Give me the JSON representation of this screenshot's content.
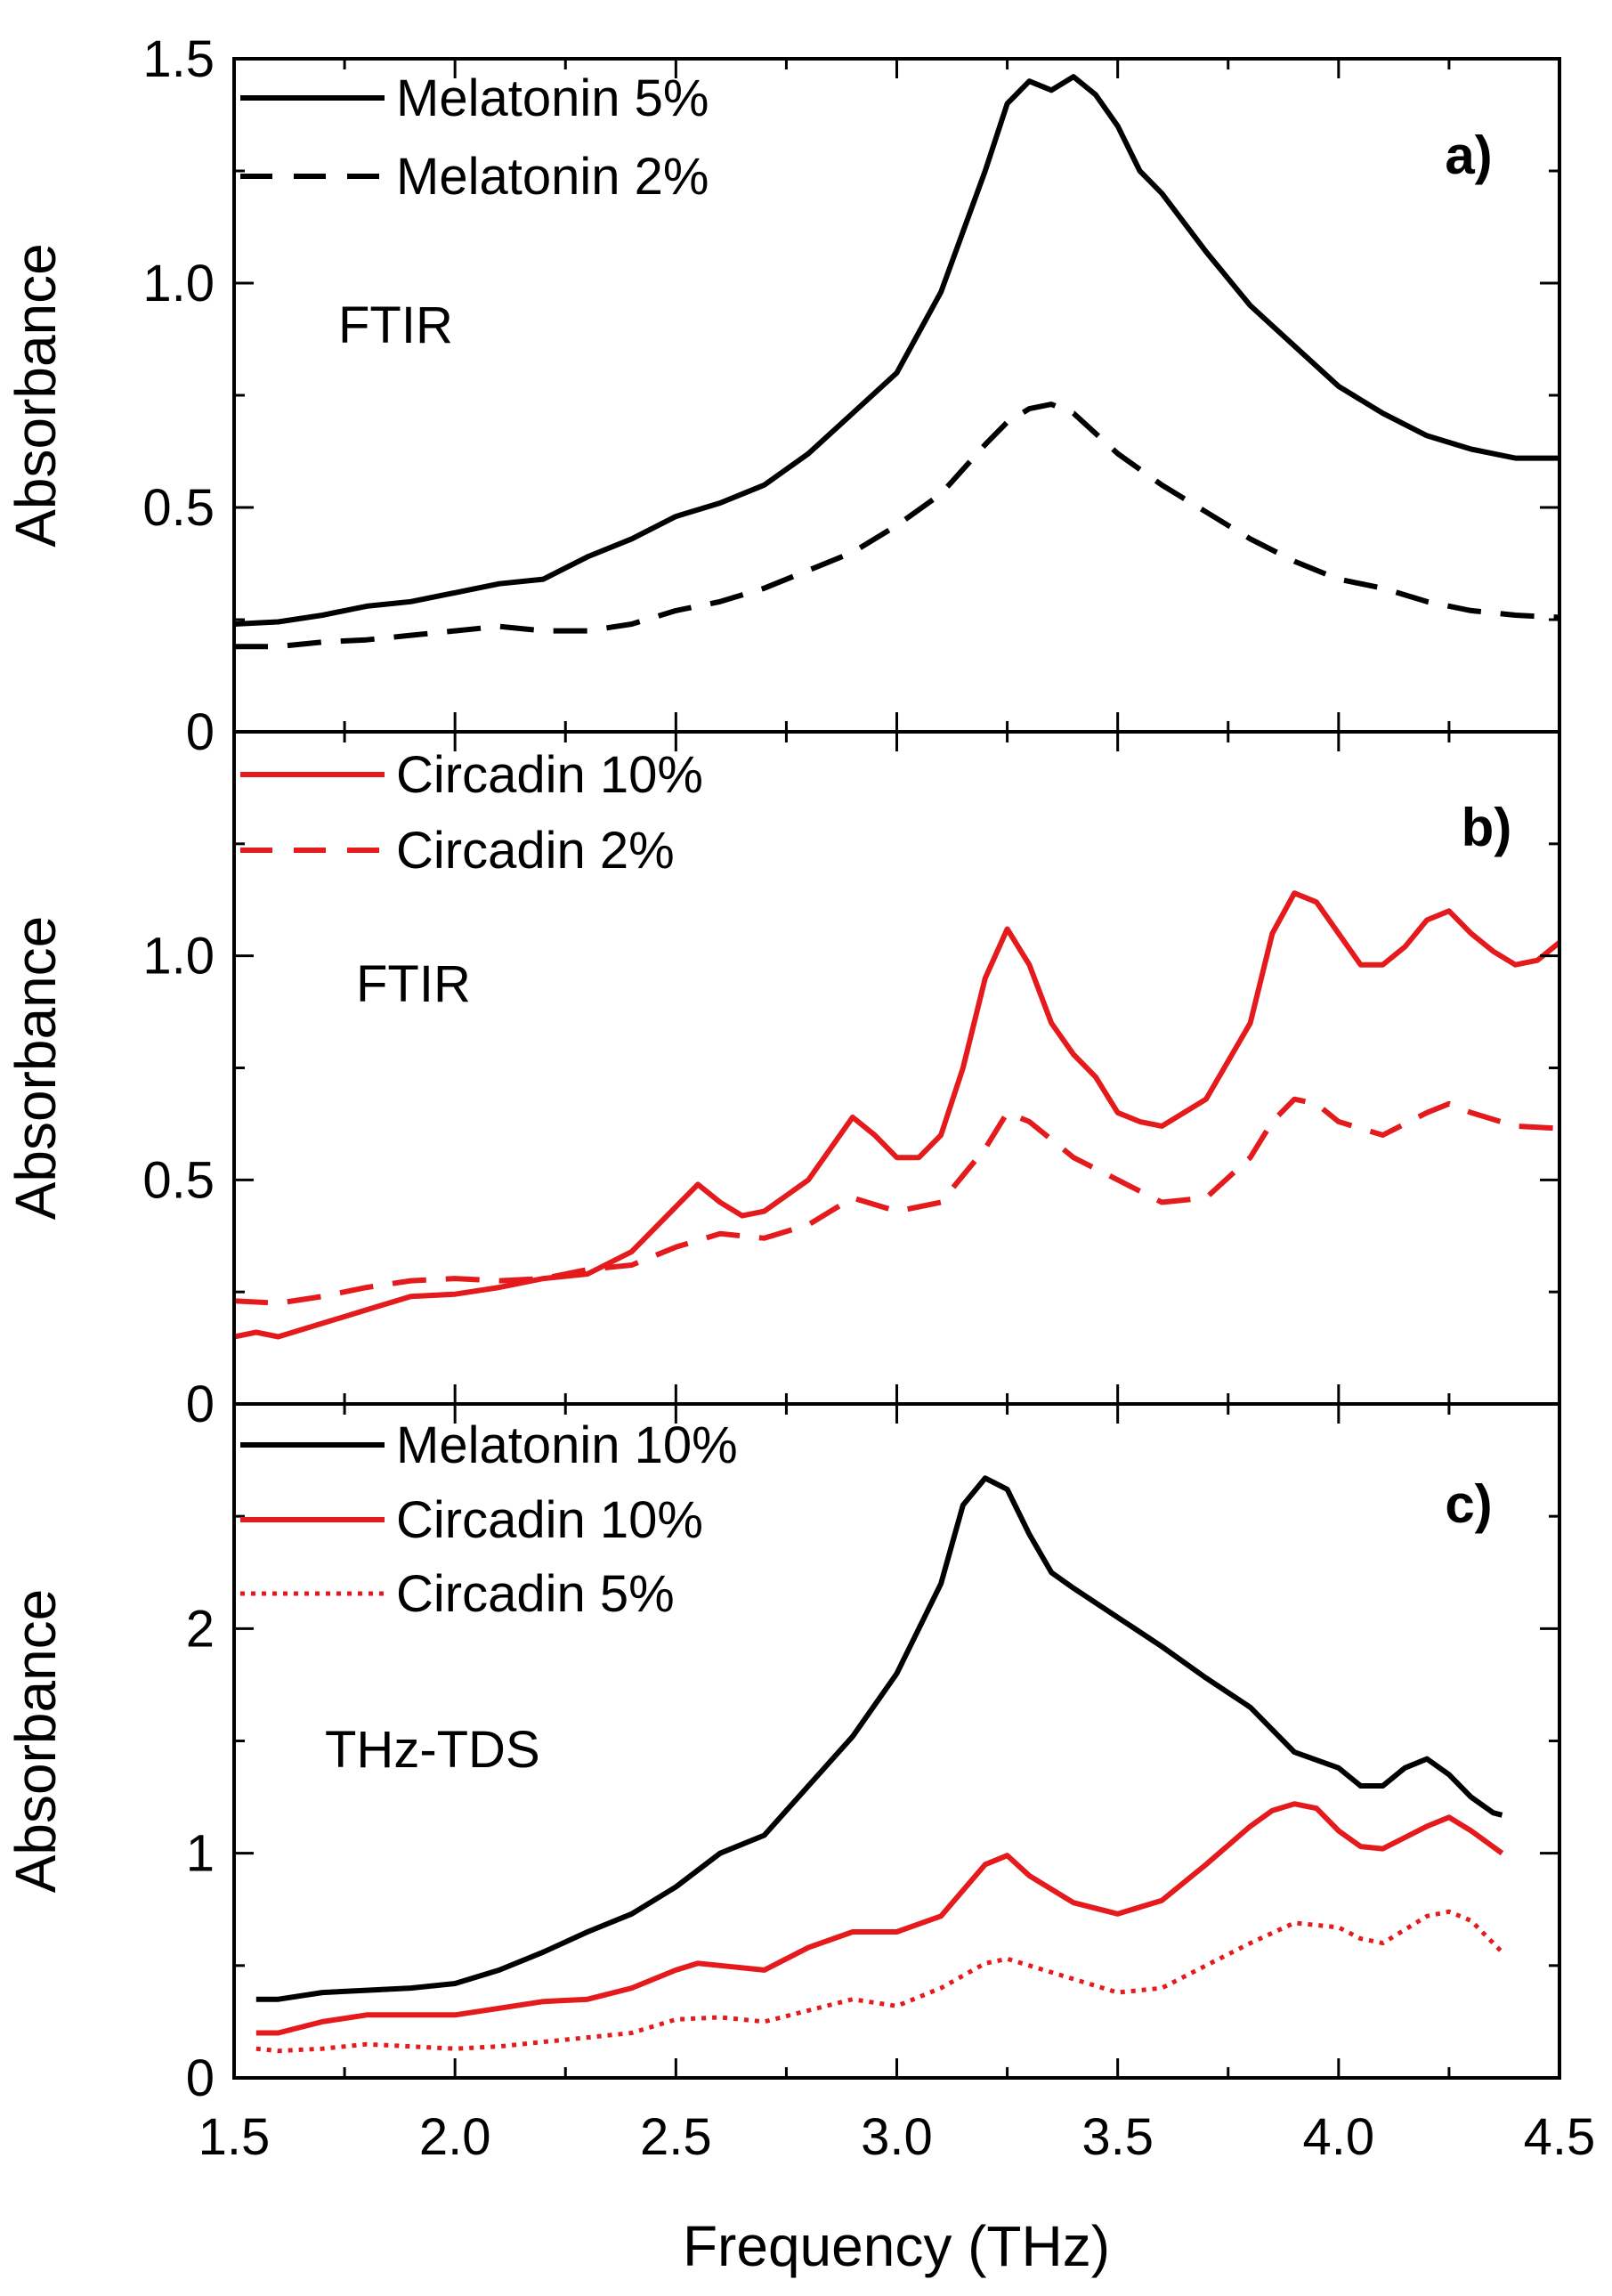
{
  "figure": {
    "xlabel": "Frequency (THz)",
    "xlim": [
      1.5,
      4.5
    ],
    "x_ticks": [
      1.5,
      2.0,
      2.5,
      3.0,
      3.5,
      4.0,
      4.5
    ],
    "x_tick_labels": [
      "1.5",
      "2.0",
      "2.5",
      "3.0",
      "3.5",
      "4.0",
      "4.5"
    ]
  },
  "chart_data": [
    {
      "type": "line",
      "panel_label": "a)",
      "method": "FTIR",
      "ylabel": "Absorbance",
      "ylim": [
        0,
        1.5
      ],
      "y_ticks": [
        0,
        0.5,
        1.0,
        1.5
      ],
      "y_tick_labels": [
        "0",
        "0.5",
        "1.0",
        "1.5"
      ],
      "series": [
        {
          "name": "Melatonin 5%",
          "color": "#000000",
          "style": "solid",
          "x": [
            1.5,
            1.6,
            1.7,
            1.8,
            1.9,
            2.0,
            2.1,
            2.2,
            2.3,
            2.4,
            2.5,
            2.6,
            2.7,
            2.8,
            2.9,
            3.0,
            3.1,
            3.2,
            3.25,
            3.3,
            3.35,
            3.4,
            3.45,
            3.5,
            3.55,
            3.6,
            3.7,
            3.8,
            3.9,
            4.0,
            4.1,
            4.2,
            4.3,
            4.4,
            4.5
          ],
          "values": [
            0.24,
            0.245,
            0.26,
            0.28,
            0.29,
            0.31,
            0.33,
            0.34,
            0.39,
            0.43,
            0.48,
            0.51,
            0.55,
            0.62,
            0.71,
            0.8,
            0.98,
            1.25,
            1.4,
            1.45,
            1.43,
            1.46,
            1.42,
            1.35,
            1.25,
            1.2,
            1.07,
            0.95,
            0.86,
            0.77,
            0.71,
            0.66,
            0.63,
            0.61,
            0.61
          ]
        },
        {
          "name": "Melatonin 2%",
          "color": "#000000",
          "style": "dashed",
          "x": [
            1.5,
            1.6,
            1.7,
            1.8,
            1.9,
            2.0,
            2.1,
            2.2,
            2.3,
            2.4,
            2.5,
            2.6,
            2.7,
            2.8,
            2.9,
            3.0,
            3.1,
            3.2,
            3.25,
            3.3,
            3.35,
            3.4,
            3.5,
            3.6,
            3.7,
            3.8,
            3.9,
            4.0,
            4.1,
            4.2,
            4.3,
            4.4,
            4.5
          ],
          "values": [
            0.19,
            0.19,
            0.2,
            0.205,
            0.215,
            0.225,
            0.235,
            0.225,
            0.225,
            0.24,
            0.27,
            0.29,
            0.32,
            0.36,
            0.4,
            0.46,
            0.53,
            0.64,
            0.69,
            0.72,
            0.73,
            0.71,
            0.62,
            0.55,
            0.49,
            0.43,
            0.38,
            0.34,
            0.32,
            0.29,
            0.27,
            0.26,
            0.255
          ]
        }
      ]
    },
    {
      "type": "line",
      "panel_label": "b)",
      "method": "FTIR",
      "ylabel": "Absorbance",
      "ylim": [
        0,
        1.5
      ],
      "y_ticks": [
        0,
        0.5,
        1.0
      ],
      "y_tick_labels": [
        "0",
        "0.5",
        "1.0"
      ],
      "series": [
        {
          "name": "Circadin 10%",
          "color": "#e41a1c",
          "style": "solid",
          "x": [
            1.5,
            1.55,
            1.6,
            1.7,
            1.8,
            1.9,
            2.0,
            2.1,
            2.2,
            2.3,
            2.4,
            2.5,
            2.55,
            2.6,
            2.65,
            2.7,
            2.8,
            2.9,
            2.95,
            3.0,
            3.05,
            3.1,
            3.15,
            3.2,
            3.25,
            3.3,
            3.35,
            3.4,
            3.45,
            3.5,
            3.55,
            3.6,
            3.7,
            3.8,
            3.85,
            3.9,
            3.95,
            4.0,
            4.05,
            4.1,
            4.15,
            4.2,
            4.25,
            4.3,
            4.35,
            4.4,
            4.45,
            4.5
          ],
          "values": [
            0.15,
            0.16,
            0.15,
            0.18,
            0.21,
            0.24,
            0.245,
            0.26,
            0.28,
            0.29,
            0.34,
            0.44,
            0.49,
            0.45,
            0.42,
            0.43,
            0.5,
            0.64,
            0.6,
            0.55,
            0.55,
            0.6,
            0.75,
            0.95,
            1.06,
            0.98,
            0.85,
            0.78,
            0.73,
            0.65,
            0.63,
            0.62,
            0.68,
            0.85,
            1.05,
            1.14,
            1.12,
            1.05,
            0.98,
            0.98,
            1.02,
            1.08,
            1.1,
            1.05,
            1.01,
            0.98,
            0.99,
            1.03
          ]
        },
        {
          "name": "Circadin 2%",
          "color": "#e41a1c",
          "style": "dashed",
          "x": [
            1.5,
            1.6,
            1.7,
            1.8,
            1.9,
            2.0,
            2.1,
            2.2,
            2.3,
            2.4,
            2.5,
            2.6,
            2.7,
            2.8,
            2.9,
            3.0,
            3.1,
            3.2,
            3.25,
            3.3,
            3.4,
            3.5,
            3.6,
            3.7,
            3.8,
            3.85,
            3.9,
            3.95,
            4.0,
            4.1,
            4.2,
            4.25,
            4.3,
            4.4,
            4.5
          ],
          "values": [
            0.23,
            0.225,
            0.24,
            0.26,
            0.275,
            0.28,
            0.275,
            0.28,
            0.3,
            0.31,
            0.35,
            0.38,
            0.37,
            0.4,
            0.46,
            0.43,
            0.45,
            0.57,
            0.65,
            0.63,
            0.55,
            0.5,
            0.45,
            0.46,
            0.55,
            0.63,
            0.68,
            0.67,
            0.63,
            0.6,
            0.65,
            0.67,
            0.65,
            0.62,
            0.615
          ]
        }
      ]
    },
    {
      "type": "line",
      "panel_label": "c)",
      "method": "THz-TDS",
      "ylabel": "Absorbance",
      "ylim": [
        0,
        3.0
      ],
      "y_ticks": [
        0,
        1,
        2
      ],
      "y_tick_labels": [
        "0",
        "1",
        "2"
      ],
      "series": [
        {
          "name": "Melatonin 10%",
          "color": "#000000",
          "style": "solid",
          "x": [
            1.55,
            1.6,
            1.7,
            1.8,
            1.9,
            2.0,
            2.1,
            2.2,
            2.3,
            2.4,
            2.5,
            2.6,
            2.7,
            2.8,
            2.9,
            3.0,
            3.1,
            3.15,
            3.2,
            3.25,
            3.3,
            3.35,
            3.4,
            3.5,
            3.6,
            3.7,
            3.8,
            3.9,
            4.0,
            4.05,
            4.1,
            4.15,
            4.2,
            4.25,
            4.3,
            4.35,
            4.37
          ],
          "values": [
            0.35,
            0.35,
            0.38,
            0.39,
            0.4,
            0.42,
            0.48,
            0.56,
            0.65,
            0.73,
            0.85,
            1.0,
            1.08,
            1.3,
            1.52,
            1.8,
            2.2,
            2.55,
            2.67,
            2.62,
            2.42,
            2.25,
            2.18,
            2.05,
            1.92,
            1.78,
            1.65,
            1.45,
            1.38,
            1.3,
            1.3,
            1.38,
            1.42,
            1.35,
            1.25,
            1.18,
            1.17
          ]
        },
        {
          "name": "Circadin 10%",
          "color": "#e41a1c",
          "style": "solid",
          "x": [
            1.55,
            1.6,
            1.7,
            1.8,
            1.9,
            2.0,
            2.1,
            2.2,
            2.3,
            2.4,
            2.5,
            2.55,
            2.6,
            2.7,
            2.8,
            2.9,
            3.0,
            3.1,
            3.2,
            3.25,
            3.3,
            3.4,
            3.5,
            3.6,
            3.7,
            3.8,
            3.85,
            3.9,
            3.95,
            4.0,
            4.05,
            4.1,
            4.15,
            4.2,
            4.25,
            4.3,
            4.37
          ],
          "values": [
            0.2,
            0.2,
            0.25,
            0.28,
            0.28,
            0.28,
            0.31,
            0.34,
            0.35,
            0.4,
            0.48,
            0.51,
            0.5,
            0.48,
            0.58,
            0.65,
            0.65,
            0.72,
            0.95,
            0.99,
            0.9,
            0.78,
            0.73,
            0.79,
            0.95,
            1.12,
            1.19,
            1.22,
            1.2,
            1.1,
            1.03,
            1.02,
            1.07,
            1.12,
            1.16,
            1.1,
            1.0
          ]
        },
        {
          "name": "Circadin 5%",
          "color": "#e41a1c",
          "style": "dotted",
          "x": [
            1.55,
            1.6,
            1.7,
            1.8,
            1.9,
            2.0,
            2.1,
            2.2,
            2.3,
            2.4,
            2.5,
            2.6,
            2.7,
            2.8,
            2.9,
            3.0,
            3.1,
            3.2,
            3.25,
            3.3,
            3.4,
            3.5,
            3.6,
            3.7,
            3.8,
            3.9,
            4.0,
            4.05,
            4.1,
            4.15,
            4.2,
            4.25,
            4.3,
            4.37
          ],
          "values": [
            0.13,
            0.12,
            0.13,
            0.15,
            0.14,
            0.13,
            0.14,
            0.16,
            0.18,
            0.2,
            0.26,
            0.27,
            0.25,
            0.3,
            0.35,
            0.32,
            0.4,
            0.51,
            0.53,
            0.5,
            0.44,
            0.38,
            0.4,
            0.5,
            0.6,
            0.69,
            0.67,
            0.62,
            0.6,
            0.66,
            0.72,
            0.74,
            0.7,
            0.56
          ]
        }
      ]
    }
  ]
}
